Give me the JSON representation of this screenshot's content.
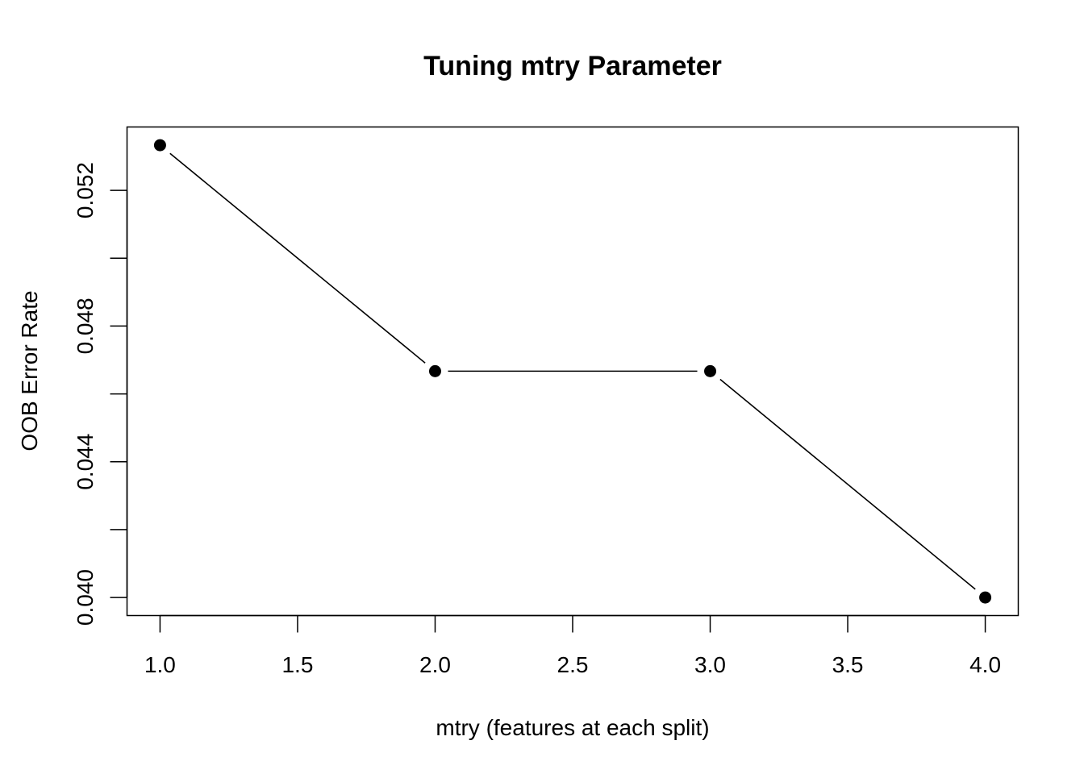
{
  "chart_data": {
    "type": "line",
    "title": "Tuning mtry Parameter",
    "xlabel": "mtry (features at each split)",
    "ylabel": "OOB Error Rate",
    "x": [
      1,
      2,
      3,
      4
    ],
    "series": [
      {
        "values": [
          0.05333,
          0.04667,
          0.04667,
          0.04
        ]
      }
    ],
    "xlim": [
      0.88,
      4.12
    ],
    "ylim": [
      0.039467,
      0.053867
    ],
    "xticks": [
      1.0,
      1.5,
      2.0,
      2.5,
      3.0,
      3.5,
      4.0
    ],
    "xtick_labels": [
      "1.0",
      "1.5",
      "2.0",
      "2.5",
      "3.0",
      "3.5",
      "4.0"
    ],
    "yticks": [
      0.04,
      0.042,
      0.044,
      0.046,
      0.048,
      0.05,
      0.052
    ],
    "ytick_labels": [
      "0.040",
      "",
      "0.044",
      "",
      "0.048",
      "",
      "0.052"
    ],
    "grid": false,
    "marker": "filled-circle",
    "color": "#000000"
  }
}
